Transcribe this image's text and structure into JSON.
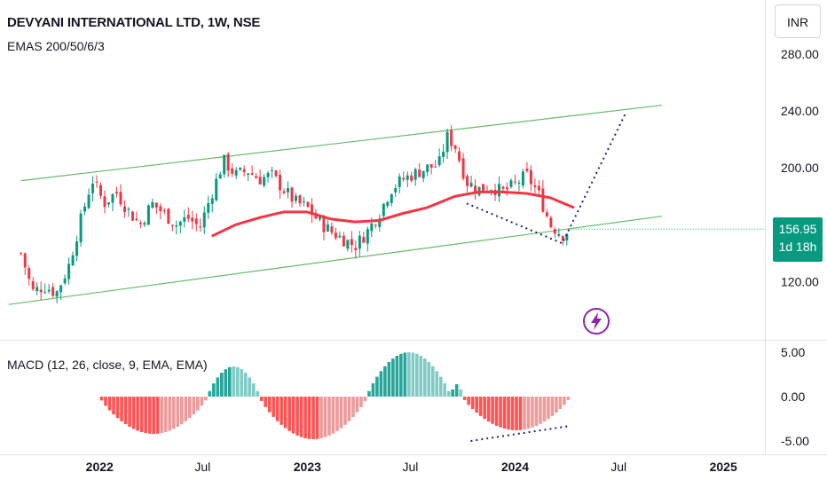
{
  "header": {
    "title": "DEVYANI INTERNATIONAL LTD, 1W, NSE",
    "indicator": "EMAS 200/50/6/3",
    "currency": "INR"
  },
  "price_badge": {
    "price": "156.95",
    "countdown": "1d 18h",
    "color": "#089981"
  },
  "macd": {
    "label": "MACD (12, 26, close, 9, EMA, EMA)"
  },
  "colors": {
    "up": "#089981",
    "down": "#f23645",
    "ema": "#f23645",
    "channel": "#66bb6a",
    "hist_up": "#26a69a",
    "hist_up_light": "#80cbc4",
    "hist_down": "#ff5252",
    "hist_down_light": "#ef9a9a",
    "dotted": "#1a237e",
    "bolt": "#8e24aa"
  },
  "icons": {
    "flash": "lightning-bolt-icon"
  },
  "chart_data": [
    {
      "type": "candlestick",
      "title": "DEVYANI INTERNATIONAL LTD, 1W, NSE",
      "ylim": [
        95,
        295
      ],
      "y_ticks": [
        "280.00",
        "240.00",
        "200.00",
        "120.00"
      ],
      "x_ticks": [
        "2022",
        "Jul",
        "2023",
        "Jul",
        "2024",
        "Jul",
        "2025"
      ],
      "x_tick_dates": [
        "2022-01-01",
        "2022-07-01",
        "2023-01-01",
        "2023-07-01",
        "2024-01-01",
        "2024-07-01",
        "2025-01-01"
      ],
      "xlim": [
        "2021-07-10",
        "2025-03-15"
      ],
      "last_price": 156.95,
      "price_path": [
        [
          "2021-08-16",
          140
        ],
        [
          "2021-09-05",
          113
        ],
        [
          "2021-09-26",
          117
        ],
        [
          "2021-10-17",
          112
        ],
        [
          "2021-11-07",
          130
        ],
        [
          "2021-11-28",
          162
        ],
        [
          "2021-12-19",
          192
        ],
        [
          "2022-01-09",
          175
        ],
        [
          "2022-01-30",
          183
        ],
        [
          "2022-02-20",
          170
        ],
        [
          "2022-03-13",
          160
        ],
        [
          "2022-04-03",
          175
        ],
        [
          "2022-04-24",
          168
        ],
        [
          "2022-05-15",
          160
        ],
        [
          "2022-06-05",
          165
        ],
        [
          "2022-06-26",
          158
        ],
        [
          "2022-07-17",
          182
        ],
        [
          "2022-08-07",
          205
        ],
        [
          "2022-08-28",
          195
        ],
        [
          "2022-09-18",
          198
        ],
        [
          "2022-10-09",
          192
        ],
        [
          "2022-10-30",
          195
        ],
        [
          "2022-11-20",
          185
        ],
        [
          "2022-12-11",
          176
        ],
        [
          "2023-01-01",
          172
        ],
        [
          "2023-01-22",
          162
        ],
        [
          "2023-02-12",
          155
        ],
        [
          "2023-03-05",
          150
        ],
        [
          "2023-03-26",
          145
        ],
        [
          "2023-04-16",
          155
        ],
        [
          "2023-05-07",
          168
        ],
        [
          "2023-05-28",
          185
        ],
        [
          "2023-06-18",
          192
        ],
        [
          "2023-07-09",
          196
        ],
        [
          "2023-07-30",
          200
        ],
        [
          "2023-08-20",
          202
        ],
        [
          "2023-09-03",
          222
        ],
        [
          "2023-09-17",
          216
        ],
        [
          "2023-10-08",
          190
        ],
        [
          "2023-10-29",
          185
        ],
        [
          "2023-11-19",
          187
        ],
        [
          "2023-12-10",
          183
        ],
        [
          "2023-12-31",
          188
        ],
        [
          "2024-01-21",
          195
        ],
        [
          "2024-02-11",
          182
        ],
        [
          "2024-03-03",
          160
        ],
        [
          "2024-03-24",
          153
        ],
        [
          "2024-04-07",
          157
        ]
      ],
      "series": [
        {
          "name": "EMA",
          "values": [
            [
              "2022-07-17",
              152
            ],
            [
              "2022-08-28",
              160
            ],
            [
              "2022-10-09",
              165
            ],
            [
              "2022-11-20",
              169
            ],
            [
              "2023-01-01",
              169
            ],
            [
              "2023-02-12",
              164
            ],
            [
              "2023-03-26",
              162
            ],
            [
              "2023-05-07",
              163
            ],
            [
              "2023-06-18",
              168
            ],
            [
              "2023-07-30",
              172
            ],
            [
              "2023-09-17",
              180
            ],
            [
              "2023-10-29",
              183
            ],
            [
              "2023-12-10",
              183
            ],
            [
              "2024-01-21",
              182
            ],
            [
              "2024-03-03",
              179
            ],
            [
              "2024-04-14",
              172
            ]
          ]
        }
      ],
      "annotations": {
        "channel_upper": [
          [
            "2021-08-16",
            191
          ],
          [
            "2024-09-15",
            244
          ]
        ],
        "channel_lower": [
          [
            "2021-07-25",
            104
          ],
          [
            "2024-09-15",
            166
          ]
        ],
        "dotted_projection": [
          [
            "2023-10-08",
            175
          ],
          [
            "2024-03-24",
            147
          ],
          [
            "2024-07-14",
            239
          ]
        ]
      }
    },
    {
      "type": "bar",
      "title": "MACD (12, 26, close, 9, EMA, EMA)",
      "ylim": [
        -6.2,
        6.2
      ],
      "y_ticks": [
        "5.00",
        "0.00",
        "-5.00"
      ],
      "histogram_segments": [
        {
          "start": "2022-01-01",
          "end": "2022-07-10",
          "peak": -4.2,
          "sign": "neg"
        },
        {
          "start": "2022-07-10",
          "end": "2022-10-09",
          "peak": 3.4,
          "sign": "pos"
        },
        {
          "start": "2022-10-09",
          "end": "2023-04-16",
          "peak": -4.8,
          "sign": "neg"
        },
        {
          "start": "2023-04-16",
          "end": "2023-09-10",
          "peak": 5.0,
          "sign": "pos"
        },
        {
          "start": "2023-09-10",
          "end": "2023-10-01",
          "peak": 1.4,
          "sign": "pos"
        },
        {
          "start": "2023-10-01",
          "end": "2024-04-07",
          "peak": -3.8,
          "sign": "neg"
        }
      ],
      "divergence_line": [
        [
          "2023-10-15",
          -5.0
        ],
        [
          "2024-04-07",
          -3.3
        ]
      ]
    }
  ]
}
